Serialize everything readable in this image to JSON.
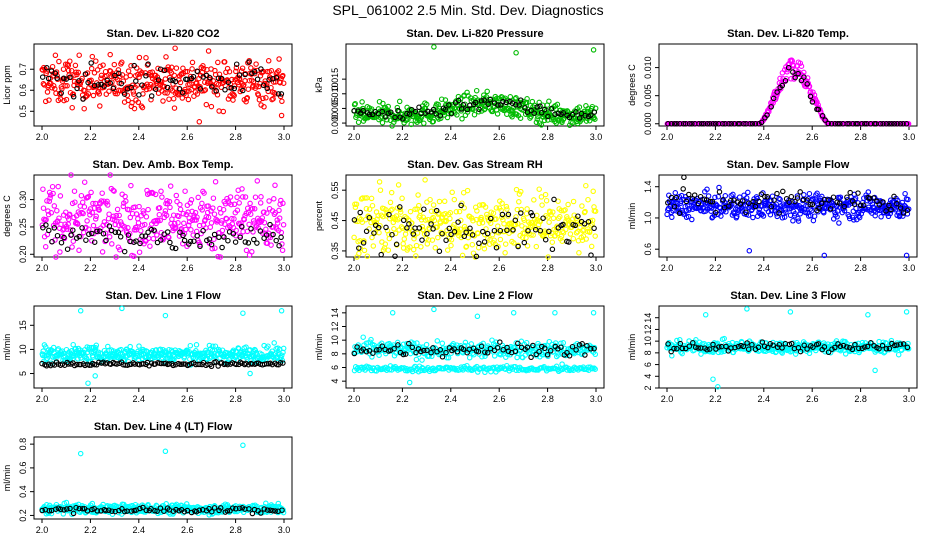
{
  "figure_title": "SPL_061002  2.5 Min. Std. Dev. Diagnostics",
  "chart_data": [
    {
      "type": "scatter",
      "title": "Stan. Dev. Li-820 CO2",
      "ylabel": "Licor ppm",
      "xlim": [
        2.0,
        3.0
      ],
      "ylim": [
        0.43,
        0.82
      ],
      "xticks": [
        "2.0",
        "2.2",
        "2.4",
        "2.6",
        "2.8",
        "3.0"
      ],
      "yticks": [
        0.5,
        0.6,
        0.7
      ],
      "ytick_labels": [
        "0.5",
        "0.6",
        "0.7"
      ],
      "series": [
        {
          "name": "main",
          "color": "#ff0000",
          "n": 420,
          "base": 0.64,
          "spread": 0.055,
          "outliers": [
            [
              2.55,
              0.8
            ],
            [
              2.65,
              0.45
            ],
            [
              2.99,
              0.48
            ]
          ]
        },
        {
          "name": "hourly",
          "color": "#000000",
          "n": 80,
          "base": 0.64,
          "spread": 0.04
        }
      ]
    },
    {
      "type": "scatter",
      "title": "Stan. Dev. Li-820 Pressure",
      "ylabel": "kPa",
      "xlim": [
        2.0,
        3.0
      ],
      "ylim": [
        -0.001,
        0.027
      ],
      "xticks": [
        "2.0",
        "2.2",
        "2.4",
        "2.6",
        "2.8",
        "3.0"
      ],
      "yticks": [
        0.0,
        0.005,
        0.01,
        0.015
      ],
      "ytick_labels": [
        "0.000",
        "0.005",
        "0.010",
        "0.015"
      ],
      "series": [
        {
          "name": "main",
          "color": "#00bb00",
          "n": 420,
          "base": 0.004,
          "spread": 0.0018,
          "hump": 0.004,
          "outliers": [
            [
              2.33,
              0.026
            ],
            [
              2.67,
              0.024
            ],
            [
              2.99,
              0.025
            ]
          ]
        },
        {
          "name": "hourly",
          "color": "#000000",
          "n": 80,
          "base": 0.0045,
          "spread": 0.0012,
          "hump": 0.004
        }
      ]
    },
    {
      "type": "scatter",
      "title": "Stan. Dev. Li-820 Temp.",
      "ylabel": "degrees C",
      "xlim": [
        2.0,
        3.0
      ],
      "ylim": [
        -0.0004,
        0.0142
      ],
      "xticks": [
        "2.0",
        "2.2",
        "2.4",
        "2.6",
        "2.8",
        "3.0"
      ],
      "yticks": [
        0.0,
        0.005,
        0.01
      ],
      "ytick_labels": [
        "0.000",
        "0.005",
        "0.010"
      ],
      "series": [
        {
          "name": "main",
          "color": "#ff00ff",
          "n": 420,
          "base": 0.0,
          "spread": 5e-05,
          "peak": 0.0105,
          "peak_x": [
            2.38,
            2.67
          ]
        },
        {
          "name": "hourly",
          "color": "#000000",
          "n": 80,
          "base": 0.0,
          "spread": 5e-05,
          "peak": 0.0095,
          "peak_x": [
            2.38,
            2.67
          ]
        }
      ]
    },
    {
      "type": "scatter",
      "title": "Stan. Dev. Amb. Box Temp.",
      "ylabel": "degrees C",
      "xlim": [
        2.0,
        3.0
      ],
      "ylim": [
        0.195,
        0.345
      ],
      "xticks": [
        "2.0",
        "2.2",
        "2.4",
        "2.6",
        "2.8",
        "3.0"
      ],
      "yticks": [
        0.2,
        0.25,
        0.3
      ],
      "ytick_labels": [
        "0.20",
        "0.25",
        "0.30"
      ],
      "series": [
        {
          "name": "main",
          "color": "#ff00ff",
          "n": 420,
          "base": 0.265,
          "spread": 0.03
        },
        {
          "name": "hourly",
          "color": "#000000",
          "n": 80,
          "base": 0.232,
          "spread": 0.012
        }
      ]
    },
    {
      "type": "scatter",
      "title": "Stan. Dev. Gas Stream RH",
      "ylabel": "percent",
      "xlim": [
        2.0,
        3.0
      ],
      "ylim": [
        0.33,
        0.6
      ],
      "xticks": [
        "2.0",
        "2.2",
        "2.4",
        "2.6",
        "2.8",
        "3.0"
      ],
      "yticks": [
        0.35,
        0.45,
        0.55
      ],
      "ytick_labels": [
        "0.35",
        "0.45",
        "0.55"
      ],
      "series": [
        {
          "name": "main",
          "color": "#ffff00",
          "n": 420,
          "base": 0.44,
          "spread": 0.05
        },
        {
          "name": "hourly",
          "color": "#000000",
          "n": 80,
          "base": 0.42,
          "spread": 0.04
        }
      ]
    },
    {
      "type": "scatter",
      "title": "Stan. Dev. Sample Flow",
      "ylabel": "ml/min",
      "xlim": [
        2.0,
        3.0
      ],
      "ylim": [
        0.5,
        1.55
      ],
      "xticks": [
        "2.0",
        "2.2",
        "2.4",
        "2.6",
        "2.8",
        "3.0"
      ],
      "yticks": [
        0.6,
        1.0,
        1.4
      ],
      "ytick_labels": [
        "0.6",
        "1.0",
        "1.4"
      ],
      "series": [
        {
          "name": "main",
          "color": "#0000ff",
          "n": 420,
          "base": 1.15,
          "spread": 0.08,
          "outliers": [
            [
              2.34,
              0.58
            ],
            [
              2.65,
              0.52
            ],
            [
              2.99,
              0.52
            ]
          ]
        },
        {
          "name": "hourly",
          "color": "#000000",
          "n": 80,
          "base": 1.2,
          "spread": 0.08,
          "outliers": [
            [
              2.07,
              1.52
            ]
          ]
        }
      ]
    },
    {
      "type": "scatter",
      "title": "Stan. Dev. Line 1 Flow",
      "ylabel": "ml/min",
      "xlim": [
        2.0,
        3.0
      ],
      "ylim": [
        2,
        19
      ],
      "xticks": [
        "2.0",
        "2.2",
        "2.4",
        "2.6",
        "2.8",
        "3.0"
      ],
      "yticks": [
        5,
        10,
        15
      ],
      "ytick_labels": [
        "5",
        "10",
        "15"
      ],
      "series": [
        {
          "name": "main",
          "color": "#00ffff",
          "n": 420,
          "base": 9.0,
          "spread": 0.8,
          "outliers": [
            [
              2.16,
              18
            ],
            [
              2.33,
              18.5
            ],
            [
              2.51,
              17
            ],
            [
              2.83,
              17.5
            ],
            [
              2.99,
              18
            ],
            [
              2.19,
              3
            ],
            [
              2.22,
              4.5
            ],
            [
              2.86,
              5
            ]
          ]
        },
        {
          "name": "hourly",
          "color": "#000000",
          "n": 120,
          "base": 7.0,
          "spread": 0.2
        }
      ]
    },
    {
      "type": "scatter",
      "title": "Stan. Dev. Line 2 Flow",
      "ylabel": "ml/min",
      "xlim": [
        2.0,
        3.0
      ],
      "ylim": [
        3,
        15
      ],
      "xticks": [
        "2.0",
        "2.2",
        "2.4",
        "2.6",
        "2.8",
        "3.0"
      ],
      "yticks": [
        4,
        6,
        8,
        10,
        12,
        14
      ],
      "ytick_labels": [
        "4",
        "6",
        "8",
        "10",
        "12",
        "14"
      ],
      "series": [
        {
          "name": "main",
          "color": "#00ffff",
          "n": 300,
          "base": 8.6,
          "spread": 0.6,
          "outliers": [
            [
              2.16,
              14
            ],
            [
              2.33,
              14.5
            ],
            [
              2.51,
              13.5
            ],
            [
              2.66,
              14
            ],
            [
              2.83,
              14
            ],
            [
              2.99,
              14
            ],
            [
              2.23,
              3.8
            ],
            [
              2.86,
              6.5
            ]
          ]
        },
        {
          "name": "low band",
          "color": "#00ffff",
          "n": 200,
          "base": 5.8,
          "spread": 0.2
        },
        {
          "name": "hourly",
          "color": "#000000",
          "n": 80,
          "base": 8.7,
          "spread": 0.5
        }
      ]
    },
    {
      "type": "scatter",
      "title": "Stan. Dev. Line 3 Flow",
      "ylabel": "ml/min",
      "xlim": [
        2.0,
        3.0
      ],
      "ylim": [
        2,
        16
      ],
      "xticks": [
        "2.0",
        "2.2",
        "2.4",
        "2.6",
        "2.8",
        "3.0"
      ],
      "yticks": [
        2,
        4,
        6,
        8,
        10,
        12,
        14
      ],
      "ytick_labels": [
        "2",
        "4",
        "6",
        "8",
        "10",
        "12",
        "14"
      ],
      "series": [
        {
          "name": "main",
          "color": "#00ffff",
          "n": 420,
          "base": 9.0,
          "spread": 0.5,
          "outliers": [
            [
              2.16,
              14.5
            ],
            [
              2.33,
              15.5
            ],
            [
              2.51,
              15
            ],
            [
              2.83,
              14.5
            ],
            [
              2.99,
              15
            ],
            [
              2.19,
              3.5
            ],
            [
              2.21,
              2.2
            ],
            [
              2.86,
              5
            ],
            [
              2.02,
              7.5
            ]
          ]
        },
        {
          "name": "hourly",
          "color": "#000000",
          "n": 80,
          "base": 9.0,
          "spread": 0.4
        }
      ]
    },
    {
      "type": "scatter",
      "title": "Stan. Dev. Line 4 (LT) Flow",
      "ylabel": "ml/min",
      "xlim": [
        2.0,
        3.0
      ],
      "ylim": [
        0.17,
        0.86
      ],
      "xticks": [
        "2.0",
        "2.2",
        "2.4",
        "2.6",
        "2.8",
        "3.0"
      ],
      "yticks": [
        0.2,
        0.4,
        0.6,
        0.8
      ],
      "ytick_labels": [
        "0.2",
        "0.4",
        "0.6",
        "0.8"
      ],
      "series": [
        {
          "name": "main",
          "color": "#00ffff",
          "n": 420,
          "base": 0.255,
          "spread": 0.02,
          "outliers": [
            [
              2.16,
              0.72
            ],
            [
              2.51,
              0.74
            ],
            [
              2.83,
              0.79
            ]
          ]
        },
        {
          "name": "hourly",
          "color": "#000000",
          "n": 80,
          "base": 0.245,
          "spread": 0.012
        }
      ]
    }
  ]
}
